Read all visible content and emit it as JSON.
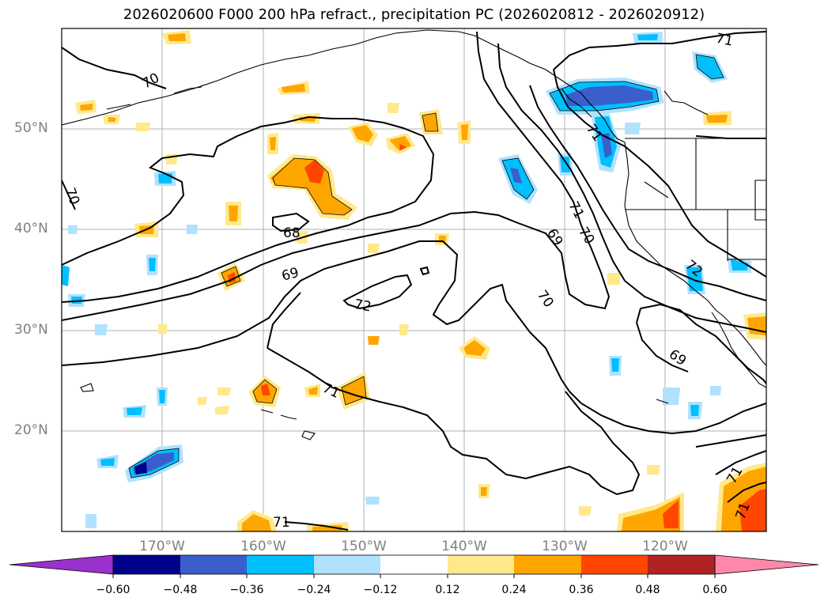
{
  "title": "2026020600 F000 200 hPa refract., precipitation PC (2026020812 - 2026020912)",
  "lat_labels": [
    "50°N",
    "40°N",
    "30°N",
    "20°N"
  ],
  "lon_labels": [
    "170°W",
    "160°W",
    "150°W",
    "140°W",
    "130°W",
    "120°W"
  ],
  "contour_labels": [
    "70",
    "70",
    "68",
    "69",
    "72",
    "71",
    "71",
    "69",
    "70",
    "70",
    "69",
    "71",
    "71",
    "71",
    "72",
    "71",
    "71"
  ],
  "colorbar": {
    "ticks": [
      "−0.60",
      "−0.48",
      "−0.36",
      "−0.24",
      "−0.12",
      "0.12",
      "0.24",
      "0.36",
      "0.48",
      "0.60"
    ],
    "colors": [
      "#9932cc",
      "#00008b",
      "#3a5fcd",
      "#00bfff",
      "#b0e2ff",
      "#ffffff",
      "#ffe98a",
      "#ffa500",
      "#ff4500",
      "#b22222",
      "#ff88aa"
    ]
  }
}
